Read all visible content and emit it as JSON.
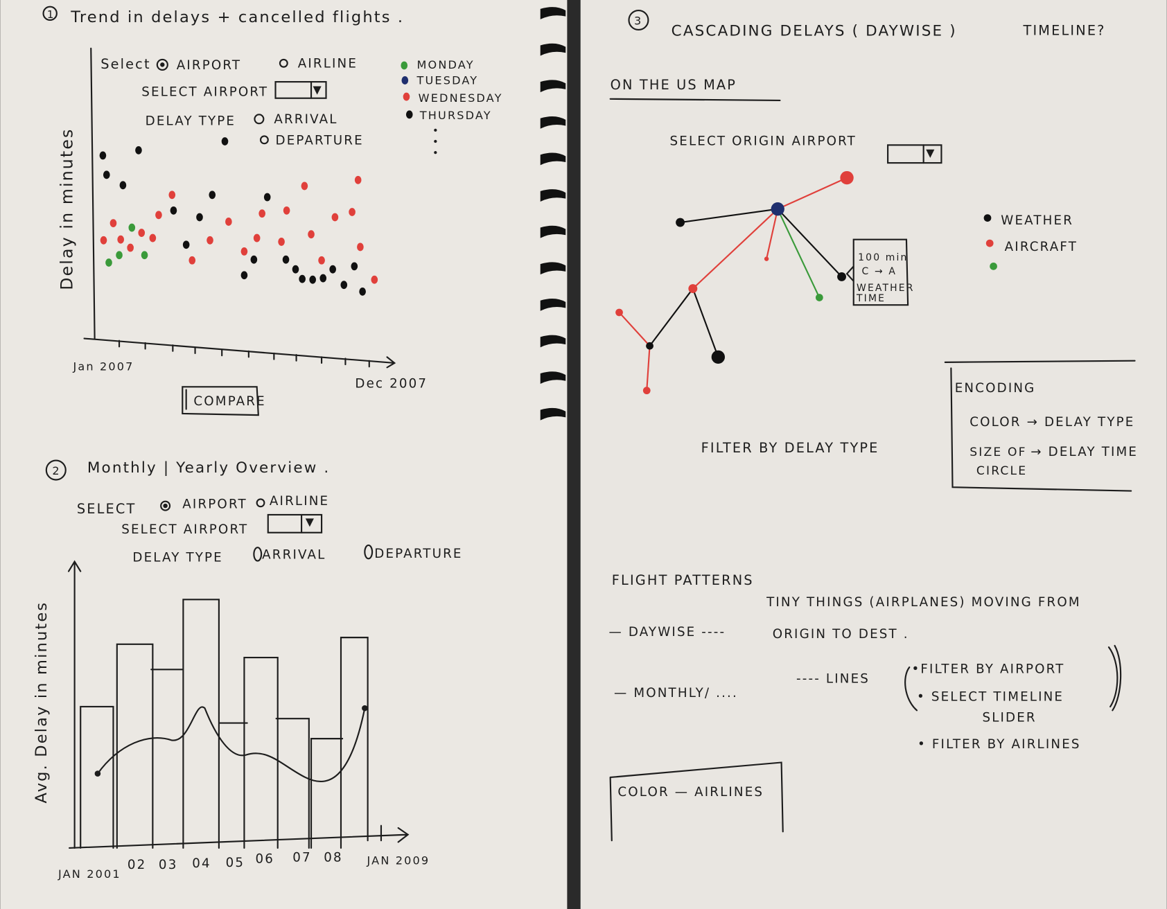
{
  "sections": [
    {
      "number": "1",
      "title": "Trend in delays + cancelled flights .",
      "select_label": "Select",
      "options": [
        "AIRPORT",
        "AIRLINE"
      ],
      "dropdown_label": "SELECT AIRPORT",
      "delay_type_label": "DELAY TYPE",
      "delay_types": [
        "ARRIVAL",
        "DEPARTURE"
      ],
      "legend": [
        "MONDAY",
        "TUESDAY",
        "WEDNESDAY",
        "THURSDAY"
      ],
      "y_label": "Delay in minutes",
      "x_start": "Jan 2007",
      "x_end": "Dec 2007",
      "button": "COMPARE"
    },
    {
      "number": "2",
      "title": "Monthly | Yearly Overview .",
      "select_label": "SELECT",
      "options": [
        "AIRPORT",
        "AIRLINE"
      ],
      "dropdown_label": "SELECT AIRPORT",
      "delay_type_label": "DELAY TYPE",
      "delay_types": [
        "ARRIVAL",
        "DEPARTURE"
      ],
      "y_label": "Avg. Delay in minutes",
      "x_labels": [
        "JAN 2001",
        "02",
        "03",
        "04",
        "05",
        "06",
        "07",
        "08",
        "JAN 2009"
      ]
    },
    {
      "number": "3",
      "title": "CASCADING DELAYS ( DAYWISE )",
      "note": "TIMELINE?",
      "subtitle": "ON THE US MAP",
      "dropdown_label": "SELECT ORIGIN AIRPORT",
      "legend": [
        "WEATHER",
        "AIRCRAFT"
      ],
      "tooltip": [
        "100 min",
        "C → A",
        "WEATHER",
        "TIME"
      ],
      "filter": "FILTER BY DELAY TYPE",
      "encoding": {
        "title": "ENCODING",
        "color_row": "COLOR → DELAY TYPE",
        "size_row": [
          "SIZE OF",
          "CIRCLE",
          "→ DELAY TIME"
        ]
      }
    }
  ],
  "flight_patterns": {
    "title": "FLIGHT PATTERNS",
    "lines": [
      "— DAYWISE ----",
      "TINY THINGS (AIRPLANES) MOVING FROM",
      "ORIGIN TO DEST .",
      "— MONTHLY/ ....",
      "---- LINES",
      "•FILTER BY AIRPORT",
      "• SELECT TIMELINE",
      "SLIDER",
      "• FILTER BY AIRLINES"
    ],
    "box": "COLOR — AIRLINES"
  }
}
